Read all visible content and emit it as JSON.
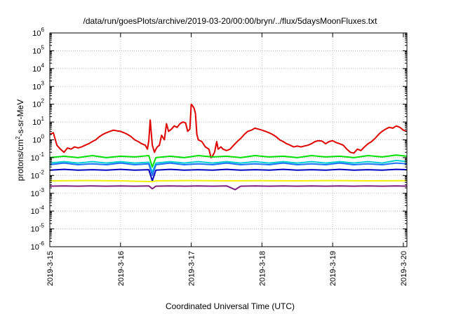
{
  "chart_data": {
    "type": "line",
    "title": "/data/run/goesPlots/archive/2019-03-20/00:00/bryn/../flux/5daysMoonFluxes.txt",
    "xlabel": "Coordinated Universal Time (UTC)",
    "ylabel_base": "protons/cm",
    "ylabel_sup": "2",
    "ylabel_rest": "-s-sr-MeV",
    "y_scale": "log",
    "ylim_exponents": [
      -6,
      6
    ],
    "y_tick_exponents": [
      -6,
      -5,
      -4,
      -3,
      -2,
      -1,
      0,
      1,
      2,
      3,
      4,
      5,
      6
    ],
    "y_tick_base": "10",
    "xlim_days": [
      0,
      5.05
    ],
    "x_ticks": [
      {
        "day": 0,
        "label": "2019-3-15"
      },
      {
        "day": 1,
        "label": "2019-3-16"
      },
      {
        "day": 2,
        "label": "2019-3-17"
      },
      {
        "day": 3,
        "label": "2019-3-18"
      },
      {
        "day": 4,
        "label": "2019-3-19"
      },
      {
        "day": 5,
        "label": "2019-3-20"
      }
    ],
    "grid": true,
    "series": [
      {
        "color": "#e00000",
        "points": [
          [
            0.0,
            2.0
          ],
          [
            0.05,
            2.5
          ],
          [
            0.1,
            0.5
          ],
          [
            0.15,
            0.3
          ],
          [
            0.2,
            0.2
          ],
          [
            0.25,
            0.35
          ],
          [
            0.3,
            0.3
          ],
          [
            0.35,
            0.4
          ],
          [
            0.4,
            0.35
          ],
          [
            0.45,
            0.4
          ],
          [
            0.5,
            0.5
          ],
          [
            0.55,
            0.6
          ],
          [
            0.6,
            0.8
          ],
          [
            0.65,
            1.0
          ],
          [
            0.7,
            1.5
          ],
          [
            0.75,
            2.0
          ],
          [
            0.8,
            2.5
          ],
          [
            0.85,
            3.0
          ],
          [
            0.9,
            3.5
          ],
          [
            0.95,
            3.2
          ],
          [
            1.0,
            3.0
          ],
          [
            1.05,
            2.5
          ],
          [
            1.1,
            2.0
          ],
          [
            1.15,
            1.5
          ],
          [
            1.2,
            1.0
          ],
          [
            1.25,
            0.8
          ],
          [
            1.3,
            0.6
          ],
          [
            1.35,
            0.5
          ],
          [
            1.38,
            0.3
          ],
          [
            1.4,
            0.9
          ],
          [
            1.42,
            13
          ],
          [
            1.45,
            0.5
          ],
          [
            1.48,
            0.2
          ],
          [
            1.5,
            0.3
          ],
          [
            1.52,
            0.4
          ],
          [
            1.55,
            0.5
          ],
          [
            1.58,
            1.8
          ],
          [
            1.62,
            1.0
          ],
          [
            1.65,
            8
          ],
          [
            1.68,
            3
          ],
          [
            1.72,
            4
          ],
          [
            1.76,
            6
          ],
          [
            1.8,
            5
          ],
          [
            1.84,
            8
          ],
          [
            1.88,
            10
          ],
          [
            1.92,
            9
          ],
          [
            1.95,
            3
          ],
          [
            1.98,
            4
          ],
          [
            2.0,
            100
          ],
          [
            2.02,
            80
          ],
          [
            2.04,
            60
          ],
          [
            2.06,
            30
          ],
          [
            2.08,
            2
          ],
          [
            2.1,
            1.0
          ],
          [
            2.15,
            0.8
          ],
          [
            2.2,
            0.4
          ],
          [
            2.25,
            0.3
          ],
          [
            2.28,
            0.1
          ],
          [
            2.3,
            0.12
          ],
          [
            2.33,
            0.2
          ],
          [
            2.36,
            0.8
          ],
          [
            2.38,
            0.3
          ],
          [
            2.42,
            0.4
          ],
          [
            2.45,
            0.3
          ],
          [
            2.5,
            0.25
          ],
          [
            2.55,
            0.3
          ],
          [
            2.6,
            0.5
          ],
          [
            2.65,
            0.8
          ],
          [
            2.7,
            1.2
          ],
          [
            2.75,
            2.0
          ],
          [
            2.8,
            3.0
          ],
          [
            2.85,
            3.5
          ],
          [
            2.9,
            4.5
          ],
          [
            2.95,
            4.0
          ],
          [
            3.0,
            3.5
          ],
          [
            3.05,
            3.0
          ],
          [
            3.1,
            2.5
          ],
          [
            3.15,
            2.0
          ],
          [
            3.2,
            1.5
          ],
          [
            3.25,
            1.0
          ],
          [
            3.3,
            0.8
          ],
          [
            3.35,
            0.6
          ],
          [
            3.4,
            0.5
          ],
          [
            3.45,
            0.4
          ],
          [
            3.5,
            0.45
          ],
          [
            3.55,
            0.4
          ],
          [
            3.6,
            0.45
          ],
          [
            3.65,
            0.5
          ],
          [
            3.7,
            0.6
          ],
          [
            3.75,
            0.8
          ],
          [
            3.8,
            0.9
          ],
          [
            3.85,
            0.85
          ],
          [
            3.9,
            0.6
          ],
          [
            3.95,
            0.8
          ],
          [
            4.0,
            0.9
          ],
          [
            4.05,
            0.7
          ],
          [
            4.1,
            0.6
          ],
          [
            4.15,
            0.5
          ],
          [
            4.2,
            0.3
          ],
          [
            4.25,
            0.2
          ],
          [
            4.3,
            0.18
          ],
          [
            4.35,
            0.3
          ],
          [
            4.4,
            0.25
          ],
          [
            4.45,
            0.4
          ],
          [
            4.5,
            0.6
          ],
          [
            4.55,
            0.8
          ],
          [
            4.6,
            1.2
          ],
          [
            4.65,
            2.0
          ],
          [
            4.7,
            3.0
          ],
          [
            4.75,
            4.0
          ],
          [
            4.8,
            5.0
          ],
          [
            4.85,
            4.5
          ],
          [
            4.9,
            6.0
          ],
          [
            4.95,
            5.0
          ],
          [
            5.0,
            3.5
          ],
          [
            5.05,
            3.0
          ]
        ]
      },
      {
        "color": "#00e000",
        "points": [
          [
            0.0,
            0.1
          ],
          [
            0.2,
            0.12
          ],
          [
            0.4,
            0.1
          ],
          [
            0.6,
            0.13
          ],
          [
            0.8,
            0.1
          ],
          [
            1.0,
            0.12
          ],
          [
            1.2,
            0.11
          ],
          [
            1.4,
            0.13
          ],
          [
            1.45,
            0.03
          ],
          [
            1.5,
            0.1
          ],
          [
            1.7,
            0.12
          ],
          [
            1.9,
            0.1
          ],
          [
            2.1,
            0.13
          ],
          [
            2.3,
            0.11
          ],
          [
            2.5,
            0.12
          ],
          [
            2.7,
            0.1
          ],
          [
            2.9,
            0.13
          ],
          [
            3.1,
            0.11
          ],
          [
            3.3,
            0.12
          ],
          [
            3.5,
            0.1
          ],
          [
            3.7,
            0.13
          ],
          [
            3.9,
            0.11
          ],
          [
            4.1,
            0.12
          ],
          [
            4.3,
            0.1
          ],
          [
            4.5,
            0.13
          ],
          [
            4.7,
            0.11
          ],
          [
            4.9,
            0.14
          ],
          [
            5.05,
            0.12
          ]
        ]
      },
      {
        "color": "#00d0d0",
        "points": [
          [
            0.0,
            0.05
          ],
          [
            0.2,
            0.06
          ],
          [
            0.4,
            0.05
          ],
          [
            0.6,
            0.06
          ],
          [
            0.8,
            0.05
          ],
          [
            1.0,
            0.06
          ],
          [
            1.2,
            0.05
          ],
          [
            1.4,
            0.055
          ],
          [
            1.45,
            0.015
          ],
          [
            1.5,
            0.05
          ],
          [
            1.7,
            0.06
          ],
          [
            1.9,
            0.05
          ],
          [
            2.1,
            0.06
          ],
          [
            2.3,
            0.05
          ],
          [
            2.5,
            0.06
          ],
          [
            2.7,
            0.05
          ],
          [
            2.9,
            0.06
          ],
          [
            3.1,
            0.05
          ],
          [
            3.3,
            0.06
          ],
          [
            3.5,
            0.05
          ],
          [
            3.7,
            0.06
          ],
          [
            3.9,
            0.05
          ],
          [
            4.1,
            0.06
          ],
          [
            4.3,
            0.05
          ],
          [
            4.5,
            0.06
          ],
          [
            4.7,
            0.05
          ],
          [
            4.9,
            0.07
          ],
          [
            5.05,
            0.06
          ]
        ]
      },
      {
        "color": "#2070ff",
        "points": [
          [
            0.0,
            0.04
          ],
          [
            0.2,
            0.05
          ],
          [
            0.4,
            0.04
          ],
          [
            0.6,
            0.045
          ],
          [
            0.8,
            0.04
          ],
          [
            1.0,
            0.05
          ],
          [
            1.2,
            0.04
          ],
          [
            1.4,
            0.045
          ],
          [
            1.45,
            0.01
          ],
          [
            1.5,
            0.04
          ],
          [
            1.7,
            0.05
          ],
          [
            1.9,
            0.04
          ],
          [
            2.1,
            0.045
          ],
          [
            2.3,
            0.04
          ],
          [
            2.5,
            0.05
          ],
          [
            2.7,
            0.04
          ],
          [
            2.9,
            0.045
          ],
          [
            3.1,
            0.04
          ],
          [
            3.3,
            0.05
          ],
          [
            3.5,
            0.04
          ],
          [
            3.7,
            0.045
          ],
          [
            3.9,
            0.04
          ],
          [
            4.1,
            0.05
          ],
          [
            4.3,
            0.04
          ],
          [
            4.5,
            0.045
          ],
          [
            4.7,
            0.04
          ],
          [
            4.9,
            0.05
          ],
          [
            5.05,
            0.045
          ]
        ]
      },
      {
        "color": "#0000c0",
        "points": [
          [
            0.0,
            0.02
          ],
          [
            0.2,
            0.022
          ],
          [
            0.4,
            0.02
          ],
          [
            0.6,
            0.021
          ],
          [
            0.8,
            0.02
          ],
          [
            1.0,
            0.022
          ],
          [
            1.2,
            0.02
          ],
          [
            1.4,
            0.021
          ],
          [
            1.45,
            0.005
          ],
          [
            1.5,
            0.02
          ],
          [
            1.7,
            0.022
          ],
          [
            1.9,
            0.02
          ],
          [
            2.1,
            0.021
          ],
          [
            2.3,
            0.02
          ],
          [
            2.5,
            0.022
          ],
          [
            2.7,
            0.02
          ],
          [
            2.9,
            0.021
          ],
          [
            3.1,
            0.02
          ],
          [
            3.3,
            0.022
          ],
          [
            3.5,
            0.02
          ],
          [
            3.7,
            0.021
          ],
          [
            3.9,
            0.02
          ],
          [
            4.1,
            0.022
          ],
          [
            4.3,
            0.02
          ],
          [
            4.5,
            0.021
          ],
          [
            4.7,
            0.02
          ],
          [
            4.9,
            0.022
          ],
          [
            5.05,
            0.021
          ]
        ]
      },
      {
        "color": "#f0f000",
        "points": [
          [
            0.0,
            0.005
          ],
          [
            0.5,
            0.0052
          ],
          [
            1.0,
            0.005
          ],
          [
            1.45,
            0.0045
          ],
          [
            1.5,
            0.005
          ],
          [
            2.0,
            0.0052
          ],
          [
            2.5,
            0.005
          ],
          [
            3.0,
            0.0051
          ],
          [
            3.5,
            0.005
          ],
          [
            4.0,
            0.0052
          ],
          [
            4.5,
            0.005
          ],
          [
            5.05,
            0.0051
          ]
        ]
      },
      {
        "color": "#802080",
        "points": [
          [
            0.0,
            0.0025
          ],
          [
            0.2,
            0.0026
          ],
          [
            0.4,
            0.0025
          ],
          [
            0.6,
            0.0026
          ],
          [
            0.8,
            0.0025
          ],
          [
            1.0,
            0.0026
          ],
          [
            1.2,
            0.0025
          ],
          [
            1.4,
            0.0026
          ],
          [
            1.45,
            0.0018
          ],
          [
            1.5,
            0.0025
          ],
          [
            1.7,
            0.0026
          ],
          [
            1.9,
            0.0025
          ],
          [
            2.1,
            0.0026
          ],
          [
            2.3,
            0.0025
          ],
          [
            2.5,
            0.0026
          ],
          [
            2.62,
            0.0016
          ],
          [
            2.7,
            0.0025
          ],
          [
            2.9,
            0.0026
          ],
          [
            3.1,
            0.0025
          ],
          [
            3.3,
            0.0026
          ],
          [
            3.5,
            0.0025
          ],
          [
            3.7,
            0.0026
          ],
          [
            3.9,
            0.0025
          ],
          [
            4.1,
            0.0026
          ],
          [
            4.3,
            0.0025
          ],
          [
            4.5,
            0.0026
          ],
          [
            4.7,
            0.0025
          ],
          [
            4.9,
            0.0026
          ],
          [
            5.05,
            0.0025
          ]
        ]
      }
    ]
  }
}
